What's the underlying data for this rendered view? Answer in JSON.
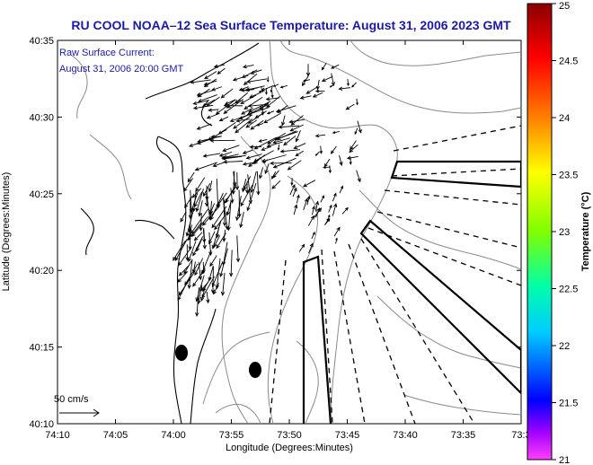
{
  "title": "RU COOL  NOAA–12  Sea Surface Temperature:  August 31, 2006 2023 GMT",
  "annotation": {
    "line1": "Raw Surface Current:",
    "line2": "August 31, 2006 20:00 GMT"
  },
  "scale_label": "50 cm/s",
  "axes": {
    "xlabel": "Longitude (Degrees:Minutes)",
    "ylabel": "Latitude (Degrees:Minutes)",
    "x_ticks": [
      "74:10",
      "74:05",
      "74:00",
      "73:55",
      "73:50",
      "73:45",
      "73:40",
      "73:35",
      "73:3"
    ],
    "y_ticks": [
      "40:35",
      "40:30",
      "40:25",
      "40:20",
      "40:15",
      "40:10"
    ]
  },
  "colorbar": {
    "label": "Temperature (°C)",
    "ticks": [
      "25",
      "24.5",
      "24",
      "23.5",
      "23",
      "22.5",
      "22",
      "21.5",
      "21"
    ],
    "range": [
      21,
      25
    ]
  },
  "colors": {
    "title": "#1a1aa6",
    "coast": "#000000",
    "bathymetry": "#888888"
  }
}
